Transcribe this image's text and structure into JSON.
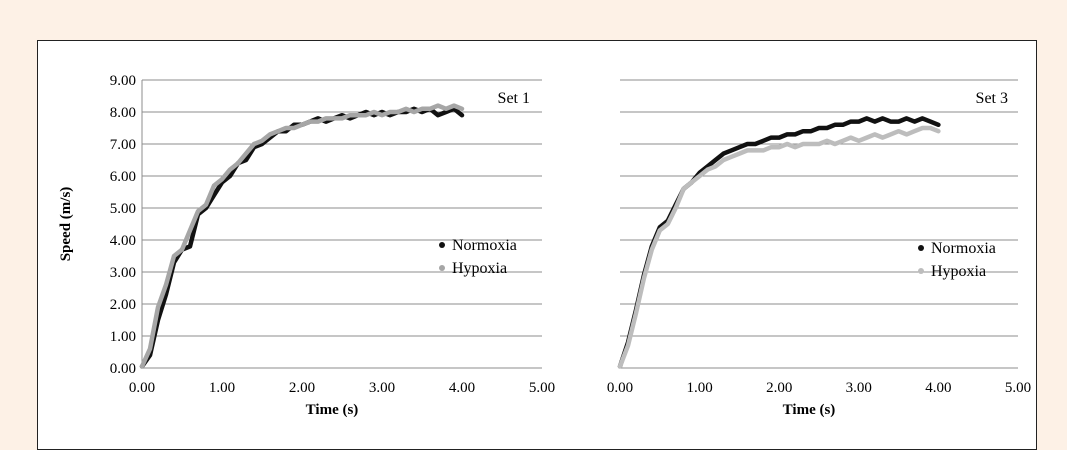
{
  "chart_data": [
    {
      "type": "line",
      "annotation": "Set 1",
      "xlabel": "Time (s)",
      "ylabel": "Speed (m/s)",
      "xlim": [
        0,
        5
      ],
      "ylim": [
        0,
        9
      ],
      "xticks": [
        "0.00",
        "1.00",
        "2.00",
        "3.00",
        "4.00",
        "5.00"
      ],
      "yticks": [
        "0.00",
        "1.00",
        "2.00",
        "3.00",
        "4.00",
        "5.00",
        "6.00",
        "7.00",
        "8.00",
        "9.00"
      ],
      "grid": true,
      "legend": "right-middle",
      "series": [
        {
          "name": "Normoxia",
          "color": "#111111",
          "x": [
            0.0,
            0.1,
            0.2,
            0.3,
            0.4,
            0.5,
            0.6,
            0.7,
            0.8,
            0.9,
            1.0,
            1.1,
            1.2,
            1.3,
            1.4,
            1.5,
            1.6,
            1.7,
            1.8,
            1.9,
            2.0,
            2.1,
            2.2,
            2.3,
            2.4,
            2.5,
            2.6,
            2.7,
            2.8,
            2.9,
            3.0,
            3.1,
            3.2,
            3.3,
            3.4,
            3.5,
            3.6,
            3.7,
            3.8,
            3.9,
            4.0
          ],
          "y": [
            0.05,
            0.4,
            1.5,
            2.3,
            3.3,
            3.7,
            3.8,
            4.8,
            5.0,
            5.4,
            5.8,
            6.0,
            6.4,
            6.5,
            6.9,
            7.0,
            7.2,
            7.4,
            7.4,
            7.6,
            7.6,
            7.7,
            7.8,
            7.7,
            7.8,
            7.9,
            7.8,
            7.9,
            8.0,
            7.9,
            8.0,
            7.9,
            8.0,
            8.0,
            8.1,
            8.0,
            8.1,
            7.9,
            8.0,
            8.1,
            7.9
          ]
        },
        {
          "name": "Hypoxia",
          "color": "#a6a6a6",
          "x": [
            0.0,
            0.1,
            0.2,
            0.3,
            0.4,
            0.5,
            0.6,
            0.7,
            0.8,
            0.9,
            1.0,
            1.1,
            1.2,
            1.3,
            1.4,
            1.5,
            1.6,
            1.7,
            1.8,
            1.9,
            2.0,
            2.1,
            2.2,
            2.3,
            2.4,
            2.5,
            2.6,
            2.7,
            2.8,
            2.9,
            3.0,
            3.1,
            3.2,
            3.3,
            3.4,
            3.5,
            3.6,
            3.7,
            3.8,
            3.9,
            4.0
          ],
          "y": [
            0.05,
            0.6,
            1.9,
            2.6,
            3.5,
            3.7,
            4.3,
            4.9,
            5.1,
            5.7,
            5.9,
            6.2,
            6.4,
            6.7,
            7.0,
            7.1,
            7.3,
            7.4,
            7.5,
            7.5,
            7.6,
            7.7,
            7.7,
            7.8,
            7.8,
            7.8,
            7.9,
            7.9,
            7.9,
            8.0,
            7.9,
            8.0,
            8.0,
            8.1,
            8.0,
            8.1,
            8.1,
            8.2,
            8.1,
            8.2,
            8.1
          ]
        }
      ]
    },
    {
      "type": "line",
      "annotation": "Set 3",
      "xlabel": "Time (s)",
      "ylabel": "",
      "xlim": [
        0,
        5
      ],
      "ylim": [
        0,
        9
      ],
      "xticks": [
        "0.00",
        "1.00",
        "2.00",
        "3.00",
        "4.00",
        "5.00"
      ],
      "yticks": [],
      "grid": true,
      "legend": "right-middle",
      "series": [
        {
          "name": "Normoxia",
          "color": "#111111",
          "x": [
            0.0,
            0.1,
            0.2,
            0.3,
            0.4,
            0.5,
            0.6,
            0.7,
            0.8,
            0.9,
            1.0,
            1.1,
            1.2,
            1.3,
            1.4,
            1.5,
            1.6,
            1.7,
            1.8,
            1.9,
            2.0,
            2.1,
            2.2,
            2.3,
            2.4,
            2.5,
            2.6,
            2.7,
            2.8,
            2.9,
            3.0,
            3.1,
            3.2,
            3.3,
            3.4,
            3.5,
            3.6,
            3.7,
            3.8,
            3.9,
            4.0
          ],
          "y": [
            0.05,
            0.8,
            1.8,
            2.9,
            3.8,
            4.4,
            4.6,
            5.1,
            5.6,
            5.8,
            6.1,
            6.3,
            6.5,
            6.7,
            6.8,
            6.9,
            7.0,
            7.0,
            7.1,
            7.2,
            7.2,
            7.3,
            7.3,
            7.4,
            7.4,
            7.5,
            7.5,
            7.6,
            7.6,
            7.7,
            7.7,
            7.8,
            7.7,
            7.8,
            7.7,
            7.7,
            7.8,
            7.7,
            7.8,
            7.7,
            7.6
          ]
        },
        {
          "name": "Hypoxia",
          "color": "#bdbdbd",
          "x": [
            0.0,
            0.1,
            0.2,
            0.3,
            0.4,
            0.5,
            0.6,
            0.7,
            0.8,
            0.9,
            1.0,
            1.1,
            1.2,
            1.3,
            1.4,
            1.5,
            1.6,
            1.7,
            1.8,
            1.9,
            2.0,
            2.1,
            2.2,
            2.3,
            2.4,
            2.5,
            2.6,
            2.7,
            2.8,
            2.9,
            3.0,
            3.1,
            3.2,
            3.3,
            3.4,
            3.5,
            3.6,
            3.7,
            3.8,
            3.9,
            4.0
          ],
          "y": [
            0.05,
            0.7,
            1.7,
            2.8,
            3.7,
            4.3,
            4.5,
            5.0,
            5.6,
            5.8,
            6.0,
            6.2,
            6.3,
            6.5,
            6.6,
            6.7,
            6.8,
            6.8,
            6.8,
            6.9,
            6.9,
            7.0,
            6.9,
            7.0,
            7.0,
            7.0,
            7.1,
            7.0,
            7.1,
            7.2,
            7.1,
            7.2,
            7.3,
            7.2,
            7.3,
            7.4,
            7.3,
            7.4,
            7.5,
            7.5,
            7.4
          ]
        }
      ]
    }
  ]
}
